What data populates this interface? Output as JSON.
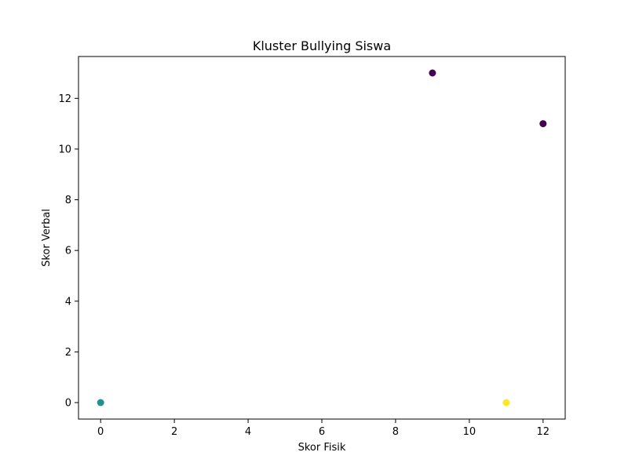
{
  "chart_data": {
    "type": "scatter",
    "title": "Kluster Bullying Siswa",
    "xlabel": "Skor Fisik",
    "ylabel": "Skor Verbal",
    "xlim": [
      -0.6,
      12.6
    ],
    "ylim": [
      -0.65,
      13.65
    ],
    "xticks": [
      0,
      2,
      4,
      6,
      8,
      10,
      12
    ],
    "yticks": [
      0,
      2,
      4,
      6,
      8,
      10,
      12
    ],
    "grid": false,
    "points": [
      {
        "x": 9,
        "y": 13,
        "cluster": 0,
        "color": "#440154"
      },
      {
        "x": 12,
        "y": 11,
        "cluster": 0,
        "color": "#440154"
      },
      {
        "x": 0,
        "y": 0,
        "cluster": 1,
        "color": "#21918c"
      },
      {
        "x": 11,
        "y": 0,
        "cluster": 2,
        "color": "#fde725"
      }
    ]
  }
}
